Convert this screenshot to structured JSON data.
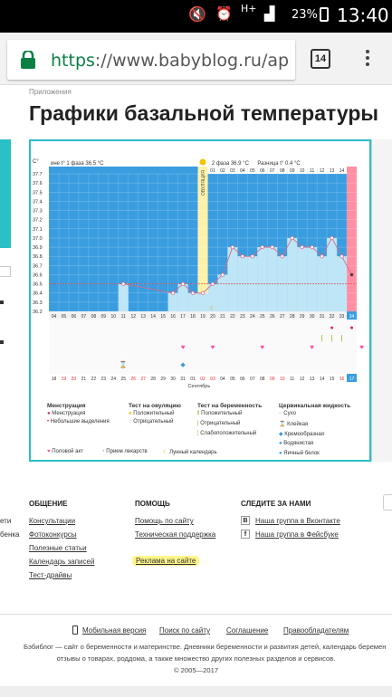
{
  "status": {
    "battery": "23%",
    "time": "13:40",
    "net": "H+"
  },
  "browser": {
    "scheme": "https",
    "url_rest": "://www.babyblog.ru/ap",
    "tab_count": "14"
  },
  "page": {
    "breadcrumb": "Приложения",
    "title": "Графики базальной температуры"
  },
  "chart": {
    "y_unit": "C°",
    "header": {
      "phase1": "ине t° 1 фаза 36.5 °C",
      "phase2": "2 фаза 36.9 °C",
      "diff": "Разница t° 0.4 °C"
    },
    "ovulation_label": "ОВУЛЯЦИЯ",
    "yticks": [
      "37.7",
      "37.6",
      "37.5",
      "37.4",
      "37.3",
      "37.2",
      "37.1",
      "37.0",
      "36.9",
      "36.8",
      "36.7",
      "36.6",
      "36.5",
      "36.4",
      "36.3",
      "36.2"
    ],
    "top_days": [
      "01",
      "02",
      "03",
      "04",
      "05",
      "06",
      "07",
      "08",
      "09",
      "10",
      "11",
      "12",
      "13",
      "14",
      "15"
    ],
    "cycle_days": [
      "04",
      "05",
      "06",
      "07",
      "08",
      "09",
      "10",
      "11",
      "12",
      "13",
      "14",
      "15",
      "16",
      "17",
      "18",
      "19",
      "20",
      "21",
      "22",
      "23",
      "24",
      "25",
      "26",
      "27",
      "28",
      "29",
      "30",
      "31",
      "32",
      "33",
      "34"
    ],
    "date_days": [
      "18",
      "19",
      "20",
      "21",
      "22",
      "23",
      "24",
      "25",
      "26",
      "27",
      "28",
      "29",
      "30",
      "31",
      "01",
      "02",
      "03",
      "04",
      "05",
      "06",
      "07",
      "08",
      "09",
      "10",
      "11",
      "12",
      "13",
      "14",
      "15",
      "16",
      "17"
    ],
    "month_label": "Сентябрь",
    "temps": [
      null,
      null,
      null,
      null,
      null,
      null,
      null,
      36.5,
      null,
      null,
      null,
      null,
      36.4,
      36.5,
      36.4,
      36.4,
      36.5,
      36.6,
      36.9,
      36.8,
      36.8,
      36.9,
      36.9,
      36.8,
      37.0,
      36.9,
      36.9,
      36.8,
      37.0,
      36.8,
      36.6
    ],
    "colors": {
      "phase_blue": "#bfe6f7",
      "chart_bg": "#3a9de0",
      "ovulation": "#fff2a8",
      "pink": "#ff8fa3",
      "line": "#d46a8a",
      "frame": "#2bbfc6"
    }
  },
  "legend": {
    "col1": {
      "title": "Менструация",
      "items": [
        "Менструация",
        "Небольшие выделения"
      ]
    },
    "col2": {
      "title": "Тест на овуляцию",
      "items": [
        "Положительный",
        "Отрицательный"
      ]
    },
    "col3": {
      "title": "Тест на беременность",
      "items": [
        "Положительный",
        "Отрицательный",
        "Слабоположительный"
      ]
    },
    "col4": {
      "title": "Цервикальная жидкость",
      "items": [
        "Сухо",
        "Клейкая",
        "Кремообразная",
        "Водянистая",
        "Яичный белок"
      ]
    },
    "bottom": [
      "Половой акт",
      "Прием лекарств",
      "Лунный календарь"
    ]
  },
  "footer": {
    "col1": {
      "title": "ОБЩЕНИЕ",
      "links": [
        "Консультации",
        "Фотоконкурсы",
        "Полезные статьи",
        "Календарь записей",
        "Тест-драйвы"
      ]
    },
    "col2": {
      "title": "ПОМОЩЬ",
      "links": [
        "Помощь по сайту",
        "Техническая поддержка",
        "Реклама на сайте"
      ]
    },
    "col3": {
      "title": "СЛЕДИТЕ ЗА НАМИ",
      "links": [
        "Наша группа в Вконтакте",
        "Наша группа в Фейсбуке"
      ]
    },
    "left_cut": [
      "ети",
      "бенка"
    ],
    "nav": [
      "Мобильная версия",
      "Поиск по сайту",
      "Соглашение",
      "Правообладателям"
    ],
    "copy1": "Бэбиблог — сайт о беременности и материнстве. Дневники беременности и развития детей, календарь беремен",
    "copy2": "отзывы о товарах, роддома, а также множество других полезных разделов и сервисов.",
    "copy3": "© 2005—2017"
  }
}
